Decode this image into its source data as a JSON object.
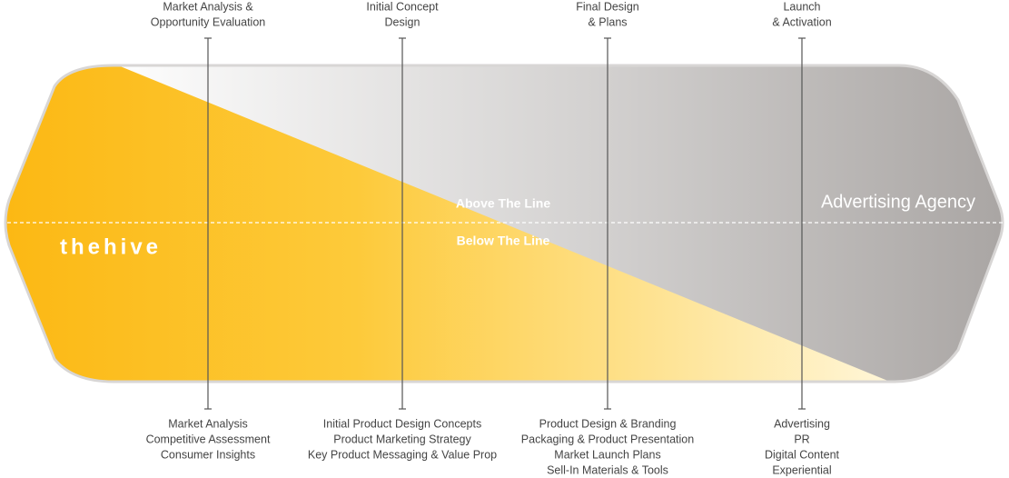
{
  "logo": "thehive",
  "above": "Above The Line",
  "below": "Below The Line",
  "agency": "Advertising Agency",
  "stages": [
    {
      "top": [
        "Market Analysis &",
        "Opportunity Evaluation"
      ],
      "bottom": [
        "Market Analysis",
        "Competitive Assessment",
        "Consumer Insights"
      ]
    },
    {
      "top": [
        "Initial Concept",
        "Design"
      ],
      "bottom": [
        "Initial Product Design Concepts",
        "Product Marketing Strategy",
        "Key Product Messaging & Value Prop"
      ]
    },
    {
      "top": [
        "Final Design",
        "& Plans"
      ],
      "bottom": [
        "Product Design & Branding",
        "Packaging & Product Presentation",
        "Market Launch Plans",
        "Sell-In Materials & Tools"
      ]
    },
    {
      "top": [
        "Launch",
        "& Activation"
      ],
      "bottom": [
        "Advertising",
        "PR",
        "Digital Content",
        "Experiential"
      ]
    }
  ]
}
